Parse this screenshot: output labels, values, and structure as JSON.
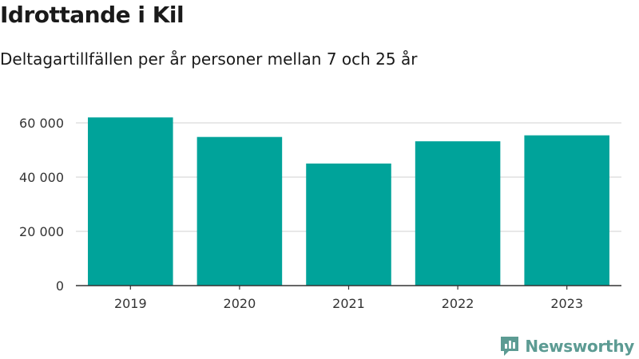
{
  "title": "Idrottande i Kil",
  "subtitle": "Deltagartillfällen per år personer mellan 7 och 25 år",
  "brand": {
    "name": "Newsworthy",
    "icon": "newsworthy-logo-icon",
    "color": "#5c9b93"
  },
  "colors": {
    "bar": "#00a39a",
    "grid": "#d9d9d9",
    "axis": "#333333"
  },
  "chart_data": {
    "type": "bar",
    "categories": [
      "2019",
      "2020",
      "2021",
      "2022",
      "2023"
    ],
    "values": [
      62000,
      54800,
      45000,
      53200,
      55400
    ],
    "y_ticks": [
      0,
      20000,
      40000,
      60000
    ],
    "y_tick_labels": [
      "0",
      "20 000",
      "40 000",
      "60 000"
    ],
    "ylim": [
      0,
      60000
    ],
    "grid": true,
    "legend": "none"
  }
}
